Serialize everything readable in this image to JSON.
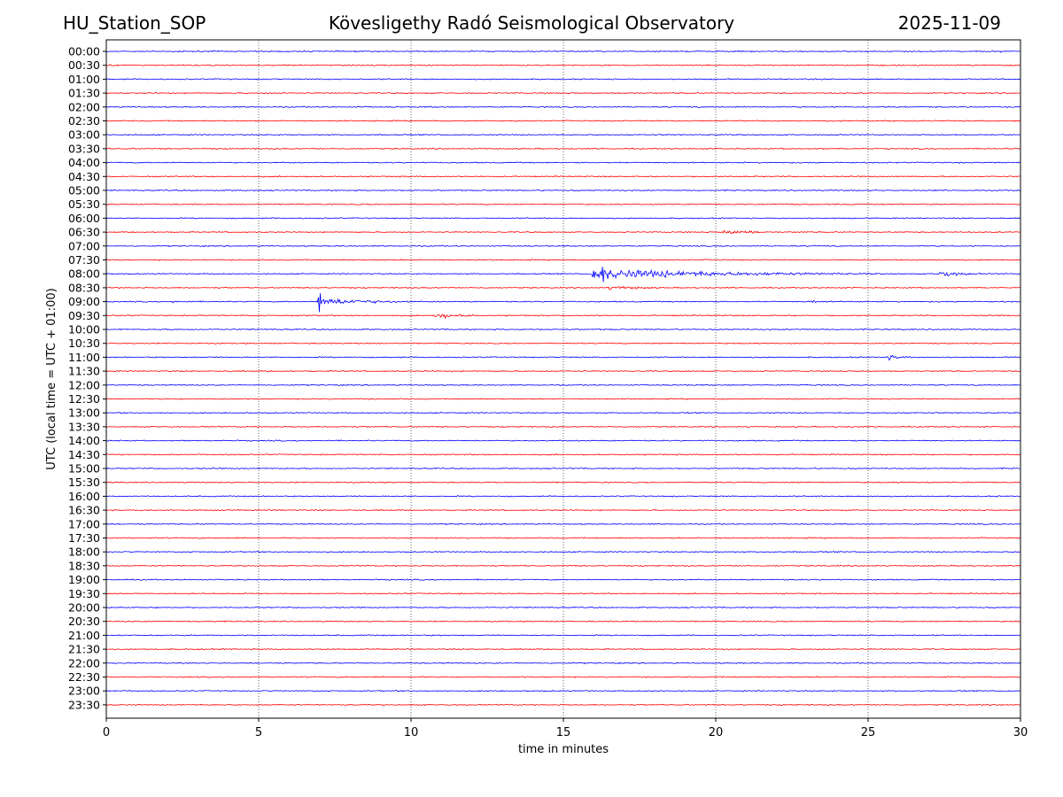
{
  "header": {
    "station": "HU_Station_SOP",
    "observatory": "Kövesligethy Radó Seismological Observatory",
    "date": "2025-11-09"
  },
  "colors": {
    "blue_trace": "#0000ff",
    "red_trace": "#ff0000",
    "grid": "#000000"
  },
  "chart_data": {
    "type": "line",
    "subtype": "helicorder",
    "xlabel": "time in minutes",
    "ylabel": "UTC (local time = UTC + 01:00)",
    "xlim": [
      0,
      30
    ],
    "x_ticks": [
      "0",
      "5",
      "10",
      "15",
      "20",
      "25",
      "30"
    ],
    "grid": "vertical dotted at 5-minute ticks",
    "row_colors_alternate": [
      "blue",
      "red"
    ],
    "rows": [
      "00:00",
      "00:30",
      "01:00",
      "01:30",
      "02:00",
      "02:30",
      "03:00",
      "03:30",
      "04:00",
      "04:30",
      "05:00",
      "05:30",
      "06:00",
      "06:30",
      "07:00",
      "07:30",
      "08:00",
      "08:30",
      "09:00",
      "09:30",
      "10:00",
      "10:30",
      "11:00",
      "11:30",
      "12:00",
      "12:30",
      "13:00",
      "13:30",
      "14:00",
      "14:30",
      "15:00",
      "15:30",
      "16:00",
      "16:30",
      "17:00",
      "17:30",
      "18:00",
      "18:30",
      "19:00",
      "19:30",
      "20:00",
      "20:30",
      "21:00",
      "21:30",
      "22:00",
      "22:30",
      "23:00",
      "23:30"
    ],
    "events": [
      {
        "row": "00:00",
        "start_min": 29.3,
        "duration_min": 0.7,
        "amplitude": 2.5
      },
      {
        "row": "00:30",
        "start_min": 0.0,
        "duration_min": 2.0,
        "amplitude": 1.8
      },
      {
        "row": "03:00",
        "start_min": 29.0,
        "duration_min": 1.0,
        "amplitude": 1.3
      },
      {
        "row": "06:30",
        "start_min": 20.2,
        "duration_min": 3.5,
        "amplitude": 4.5
      },
      {
        "row": "08:00",
        "start_min": 15.9,
        "duration_min": 14.1,
        "amplitude": 9.0
      },
      {
        "row": "08:00",
        "start_min": 23.7,
        "duration_min": 1.5,
        "amplitude": 4.0
      },
      {
        "row": "08:00",
        "start_min": 27.3,
        "duration_min": 2.7,
        "amplitude": 5.5
      },
      {
        "row": "08:30",
        "start_min": 0.0,
        "duration_min": 2.5,
        "amplitude": 1.8
      },
      {
        "row": "08:30",
        "start_min": 16.4,
        "duration_min": 5.0,
        "amplitude": 3.5
      },
      {
        "row": "09:00",
        "start_min": 2.1,
        "duration_min": 2.5,
        "amplitude": 2.5
      },
      {
        "row": "09:00",
        "start_min": 6.9,
        "duration_min": 5.5,
        "amplitude": 7.0
      },
      {
        "row": "09:00",
        "start_min": 23.0,
        "duration_min": 1.8,
        "amplitude": 3.0
      },
      {
        "row": "09:30",
        "start_min": 10.7,
        "duration_min": 3.5,
        "amplitude": 5.0
      },
      {
        "row": "10:00",
        "start_min": 5.0,
        "duration_min": 1.2,
        "amplitude": 2.0
      },
      {
        "row": "11:00",
        "start_min": 23.6,
        "duration_min": 1.0,
        "amplitude": 1.4
      },
      {
        "row": "11:00",
        "start_min": 25.6,
        "duration_min": 2.0,
        "amplitude": 4.5
      },
      {
        "row": "14:30",
        "start_min": 23.5,
        "duration_min": 0.8,
        "amplitude": 1.5
      },
      {
        "row": "15:30",
        "start_min": 26.7,
        "duration_min": 1.3,
        "amplitude": 1.3
      },
      {
        "row": "15:30",
        "start_min": 29.0,
        "duration_min": 1.0,
        "amplitude": 1.6
      },
      {
        "row": "22:00",
        "start_min": 9.5,
        "duration_min": 1.5,
        "amplitude": 1.2
      },
      {
        "row": "22:00",
        "start_min": 16.4,
        "duration_min": 1.0,
        "amplitude": 1.2
      },
      {
        "row": "22:00",
        "start_min": 19.0,
        "duration_min": 1.0,
        "amplitude": 1.1
      },
      {
        "row": "22:30",
        "start_min": 23.7,
        "duration_min": 0.8,
        "amplitude": 1.4
      }
    ],
    "spikes": [
      {
        "row": "09:00",
        "at_min": 7.0,
        "amplitude": 14.0
      },
      {
        "row": "08:00",
        "at_min": 16.3,
        "amplitude": 11.5
      }
    ]
  }
}
